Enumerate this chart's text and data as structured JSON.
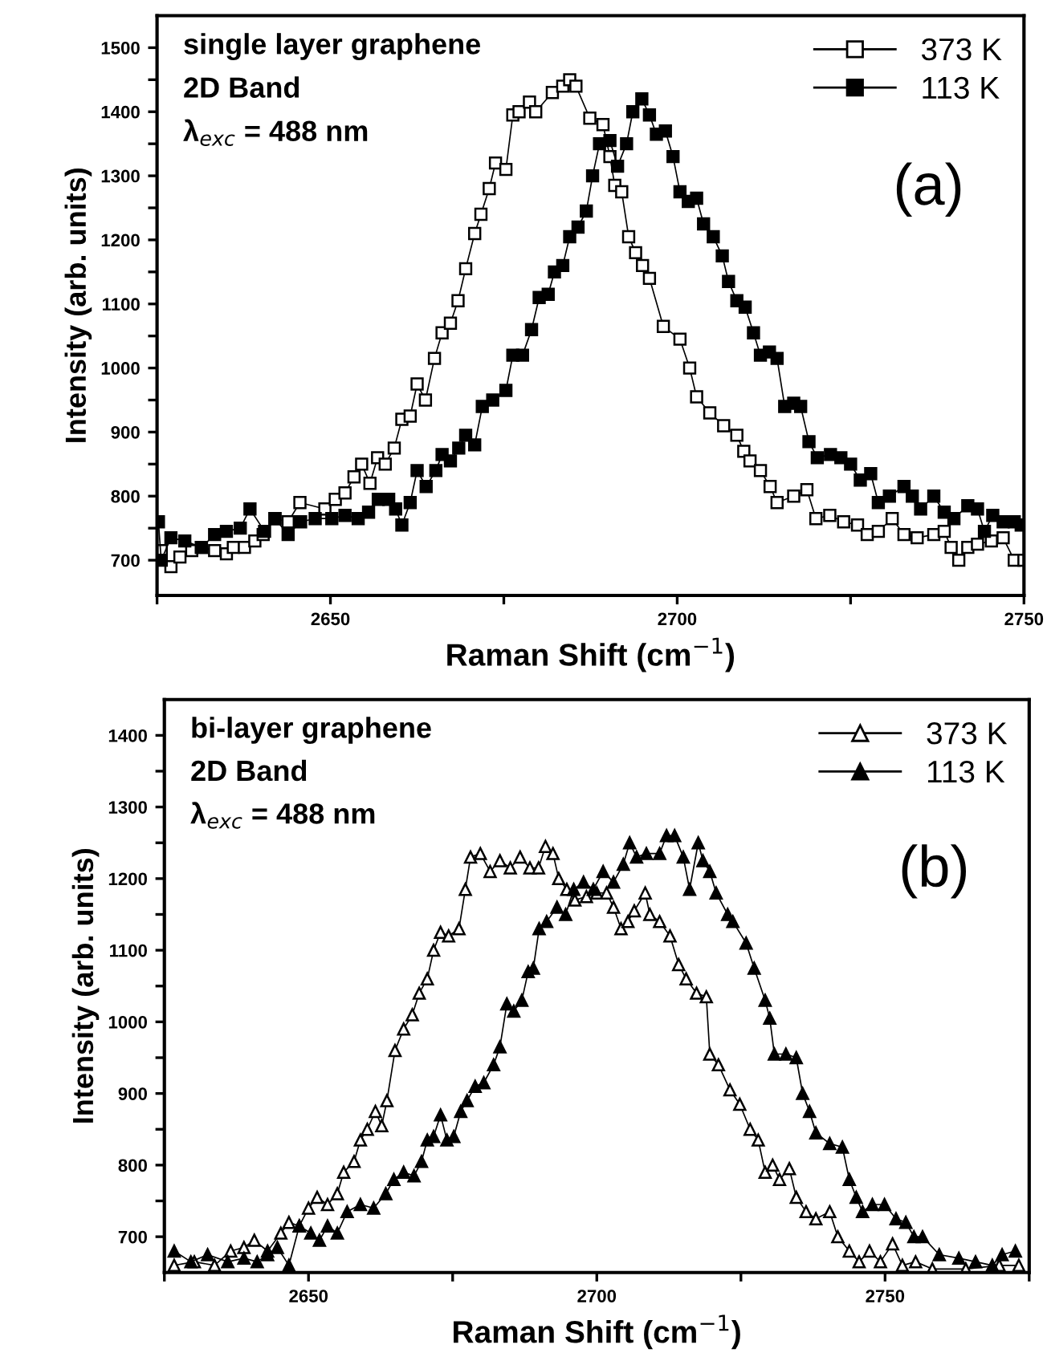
{
  "chart_data": [
    {
      "type": "line",
      "xlabel": "Raman Shift (cm$^{−1}$)",
      "ylabel": "Intensity (arb. units)",
      "annotations": [
        "single layer graphene",
        "2D Band",
        "λ$_{exc}$ = 488 nm",
        "(a)"
      ],
      "xlim": [
        2625,
        2750
      ],
      "ylim": [
        645,
        1550
      ],
      "xticks": [
        {
          "value": 2625,
          "label": null
        },
        2650,
        {
          "value": 2675,
          "label": null
        },
        2700,
        {
          "value": 2725,
          "label": null
        },
        2750
      ],
      "yticks": [
        700,
        {
          "value": 750,
          "label": null
        },
        800,
        {
          "value": 850,
          "label": null
        },
        900,
        {
          "value": 950,
          "label": null
        },
        1000,
        {
          "value": 1050,
          "label": null
        },
        1100,
        {
          "value": 1150,
          "label": null
        },
        1200,
        {
          "value": 1250,
          "label": null
        },
        1300,
        {
          "value": 1350,
          "label": null
        },
        1400,
        {
          "value": 1450,
          "label": null
        },
        1500
      ],
      "grid": false,
      "legend": "top right",
      "marker": "square",
      "line_style": "solid",
      "series": [
        {
          "name": "373 K",
          "color": "#ffffff",
          "x": [
            2625.6,
            2627,
            2628.3,
            2630,
            2631.4,
            2633.3,
            2635,
            2636,
            2637.6,
            2639.1,
            2640.3,
            2642,
            2643.9,
            2645.6,
            2649.2,
            2650.7,
            2652.1,
            2653.4,
            2654.5,
            2655.7,
            2656.8,
            2657.9,
            2659.2,
            2660.3,
            2661.5,
            2662.5,
            2663.7,
            2665,
            2666.1,
            2667.3,
            2668.4,
            2669.5,
            2670.8,
            2671.7,
            2672.9,
            2673.8,
            2675.3,
            2676.3,
            2677.2,
            2678.7,
            2679.6,
            2682,
            2683.5,
            2684.5,
            2685.4,
            2687.4,
            2689.3,
            2690.3,
            2691,
            2692,
            2693,
            2694,
            2695,
            2696,
            2698,
            2700.4,
            2701.8,
            2702.8,
            2704.7,
            2706.7,
            2708.6,
            2709.6,
            2710.5,
            2712,
            2713.4,
            2714.4,
            2716.8,
            2718.7,
            2720,
            2722,
            2724,
            2726,
            2727.4,
            2729,
            2731,
            2732.7,
            2734.6,
            2737,
            2738.5,
            2739.5,
            2740.6,
            2741.9,
            2743.3,
            2745.3,
            2747,
            2748.6,
            2750
          ],
          "values": [
            715,
            690,
            705,
            715,
            720,
            715,
            710,
            720,
            720,
            730,
            740,
            765,
            760,
            790,
            780,
            795,
            805,
            830,
            850,
            820,
            860,
            850,
            875,
            920,
            925,
            975,
            950,
            1015,
            1055,
            1070,
            1105,
            1155,
            1210,
            1240,
            1280,
            1320,
            1310,
            1395,
            1400,
            1415,
            1400,
            1430,
            1440,
            1450,
            1440,
            1390,
            1380,
            1330,
            1285,
            1275,
            1205,
            1180,
            1160,
            1140,
            1065,
            1045,
            1000,
            955,
            930,
            910,
            895,
            870,
            855,
            840,
            815,
            790,
            800,
            810,
            765,
            770,
            760,
            755,
            740,
            745,
            765,
            740,
            735,
            740,
            745,
            720,
            700,
            720,
            725,
            730,
            735,
            700,
            700
          ]
        },
        {
          "name": "113 K",
          "color": "#000000",
          "x": [
            2625.2,
            2625.6,
            2627,
            2629,
            2631.4,
            2633.3,
            2635,
            2637,
            2638.4,
            2640.5,
            2642,
            2643.9,
            2645.7,
            2647.8,
            2650.2,
            2652.1,
            2654,
            2655.5,
            2656.9,
            2658.4,
            2659.4,
            2660.3,
            2661.5,
            2662.5,
            2663.8,
            2665.2,
            2666.1,
            2667.3,
            2668.5,
            2669.5,
            2670.8,
            2671.9,
            2673.4,
            2675.3,
            2676.3,
            2677.7,
            2679,
            2680.1,
            2681.4,
            2682.3,
            2683.5,
            2684.5,
            2685.7,
            2686.9,
            2687.8,
            2688.8,
            2690.3,
            2691.4,
            2692.7,
            2693.6,
            2694.9,
            2696,
            2697,
            2698.3,
            2699.4,
            2700.4,
            2701.6,
            2702.8,
            2703.8,
            2705.2,
            2706.5,
            2707.4,
            2708.6,
            2709.8,
            2711,
            2712,
            2713.3,
            2714.4,
            2715.5,
            2716.8,
            2717.8,
            2719,
            2720.2,
            2722.1,
            2723.6,
            2725,
            2726.4,
            2727.9,
            2729,
            2730.6,
            2732.7,
            2733.9,
            2735.1,
            2737,
            2738.5,
            2739.9,
            2741.9,
            2743.3,
            2744.3,
            2745.5,
            2747,
            2748.6,
            2749.6
          ],
          "values": [
            760,
            700,
            735,
            730,
            720,
            740,
            745,
            750,
            780,
            745,
            765,
            740,
            760,
            765,
            765,
            770,
            765,
            775,
            795,
            795,
            780,
            755,
            790,
            840,
            815,
            840,
            865,
            855,
            875,
            895,
            880,
            940,
            950,
            965,
            1020,
            1020,
            1060,
            1110,
            1115,
            1150,
            1160,
            1205,
            1220,
            1245,
            1300,
            1350,
            1355,
            1315,
            1350,
            1400,
            1420,
            1395,
            1365,
            1370,
            1330,
            1275,
            1260,
            1265,
            1225,
            1205,
            1175,
            1135,
            1105,
            1095,
            1055,
            1020,
            1025,
            1015,
            940,
            945,
            940,
            885,
            860,
            865,
            860,
            850,
            825,
            835,
            790,
            800,
            815,
            800,
            780,
            800,
            775,
            765,
            785,
            780,
            745,
            770,
            760,
            760,
            755
          ]
        }
      ]
    },
    {
      "type": "line",
      "xlabel": "Raman Shift (cm$^{−1}$)",
      "ylabel": "Intensity (arb. units)",
      "annotations": [
        "bi-layer graphene",
        "2D Band",
        "λ$_{exc}$ = 488 nm",
        "(b)"
      ],
      "xlim": [
        2625,
        2775
      ],
      "ylim": [
        650,
        1450
      ],
      "xticks": [
        {
          "value": 2625,
          "label": null
        },
        2650,
        {
          "value": 2675,
          "label": null
        },
        2700,
        {
          "value": 2725,
          "label": null
        },
        2750,
        {
          "value": 2775,
          "label": null
        }
      ],
      "yticks": [
        700,
        {
          "value": 750,
          "label": null
        },
        800,
        {
          "value": 850,
          "label": null
        },
        900,
        {
          "value": 950,
          "label": null
        },
        1000,
        {
          "value": 1050,
          "label": null
        },
        1100,
        {
          "value": 1150,
          "label": null
        },
        1200,
        {
          "value": 1250,
          "label": null
        },
        1300,
        {
          "value": 1350,
          "label": null
        },
        1400
      ],
      "grid": false,
      "legend": "top right",
      "marker": "triangle",
      "line_style": "solid",
      "series": [
        {
          "name": "373 K",
          "color": "#ffffff",
          "x": [
            2626.7,
            2630.2,
            2633.7,
            2636.5,
            2638.8,
            2640.6,
            2642.9,
            2645.2,
            2646.6,
            2648.4,
            2650,
            2651.5,
            2653.3,
            2655,
            2656.1,
            2657.9,
            2659,
            2660.2,
            2661.6,
            2662.7,
            2663.6,
            2665,
            2666.5,
            2668,
            2669.2,
            2670.6,
            2671.7,
            2672.9,
            2674.3,
            2676.1,
            2677.2,
            2678.1,
            2679.8,
            2681.5,
            2683.2,
            2685,
            2686.7,
            2688.4,
            2689.9,
            2691.1,
            2692.4,
            2693.4,
            2694.8,
            2696.2,
            2698.2,
            2700,
            2701.7,
            2702.9,
            2704.2,
            2705.4,
            2706.5,
            2708.4,
            2709.2,
            2710.9,
            2712.7,
            2714.2,
            2715.5,
            2717.3,
            2719,
            2719.6,
            2721.1,
            2723.1,
            2724.8,
            2726.6,
            2728,
            2729.2,
            2730.5,
            2731.7,
            2733.4,
            2734.6,
            2736.3,
            2738,
            2740.4,
            2741.8,
            2743.8,
            2745.5,
            2747.3,
            2749.2,
            2751.3,
            2753,
            2755.3,
            2758.2,
            2764,
            2769.8,
            2773.2
          ],
          "values": [
            660,
            665,
            660,
            680,
            685,
            695,
            680,
            705,
            720,
            715,
            740,
            755,
            745,
            760,
            790,
            805,
            835,
            850,
            875,
            855,
            890,
            960,
            990,
            1010,
            1040,
            1060,
            1100,
            1125,
            1120,
            1130,
            1185,
            1230,
            1235,
            1210,
            1225,
            1215,
            1230,
            1215,
            1215,
            1245,
            1235,
            1200,
            1185,
            1170,
            1175,
            1180,
            1180,
            1160,
            1130,
            1140,
            1155,
            1180,
            1150,
            1140,
            1120,
            1080,
            1060,
            1040,
            1035,
            955,
            940,
            905,
            885,
            850,
            835,
            790,
            800,
            780,
            795,
            755,
            735,
            725,
            735,
            700,
            680,
            665,
            680,
            665,
            690,
            660,
            665,
            655,
            655,
            660,
            660
          ]
        },
        {
          "name": "113 K",
          "color": "#000000",
          "x": [
            2626.7,
            2629.6,
            2632.5,
            2636,
            2638.8,
            2641.1,
            2642.9,
            2644.6,
            2646.6,
            2648.4,
            2650.4,
            2651.9,
            2653.3,
            2655,
            2656.7,
            2659,
            2661.3,
            2663.4,
            2664.8,
            2666.5,
            2668.3,
            2669.6,
            2670.6,
            2671.7,
            2672.9,
            2674,
            2675.2,
            2676.4,
            2677.5,
            2678.9,
            2680.4,
            2682.1,
            2683.2,
            2684.4,
            2685.6,
            2687,
            2688.1,
            2689,
            2690,
            2691.3,
            2693.1,
            2694.6,
            2696,
            2697.7,
            2699.4,
            2701.1,
            2702.9,
            2704.6,
            2705.7,
            2706.9,
            2708.6,
            2710.9,
            2712.1,
            2713.5,
            2715,
            2716.1,
            2717.6,
            2718.4,
            2719.6,
            2720.7,
            2722.7,
            2723.6,
            2725.9,
            2727.3,
            2729.2,
            2730,
            2730.8,
            2732.8,
            2734.6,
            2735.7,
            2736.9,
            2738,
            2740.4,
            2742.6,
            2743.8,
            2745,
            2746.1,
            2747.8,
            2749.9,
            2751.9,
            2753.6,
            2755,
            2756.5,
            2759.4,
            2762.8,
            2765.7,
            2768.6,
            2770.3,
            2772.6
          ],
          "values": [
            680,
            665,
            675,
            665,
            670,
            665,
            675,
            685,
            660,
            715,
            705,
            695,
            715,
            705,
            735,
            745,
            740,
            760,
            780,
            790,
            785,
            805,
            835,
            840,
            870,
            835,
            840,
            875,
            890,
            910,
            915,
            940,
            965,
            1025,
            1015,
            1030,
            1070,
            1075,
            1130,
            1140,
            1160,
            1150,
            1185,
            1195,
            1185,
            1210,
            1195,
            1220,
            1250,
            1230,
            1235,
            1235,
            1260,
            1260,
            1230,
            1185,
            1250,
            1225,
            1210,
            1180,
            1150,
            1140,
            1110,
            1075,
            1030,
            1005,
            955,
            955,
            950,
            900,
            875,
            845,
            830,
            825,
            780,
            755,
            735,
            745,
            745,
            725,
            720,
            700,
            700,
            675,
            670,
            665,
            660,
            675,
            680
          ]
        }
      ]
    }
  ]
}
